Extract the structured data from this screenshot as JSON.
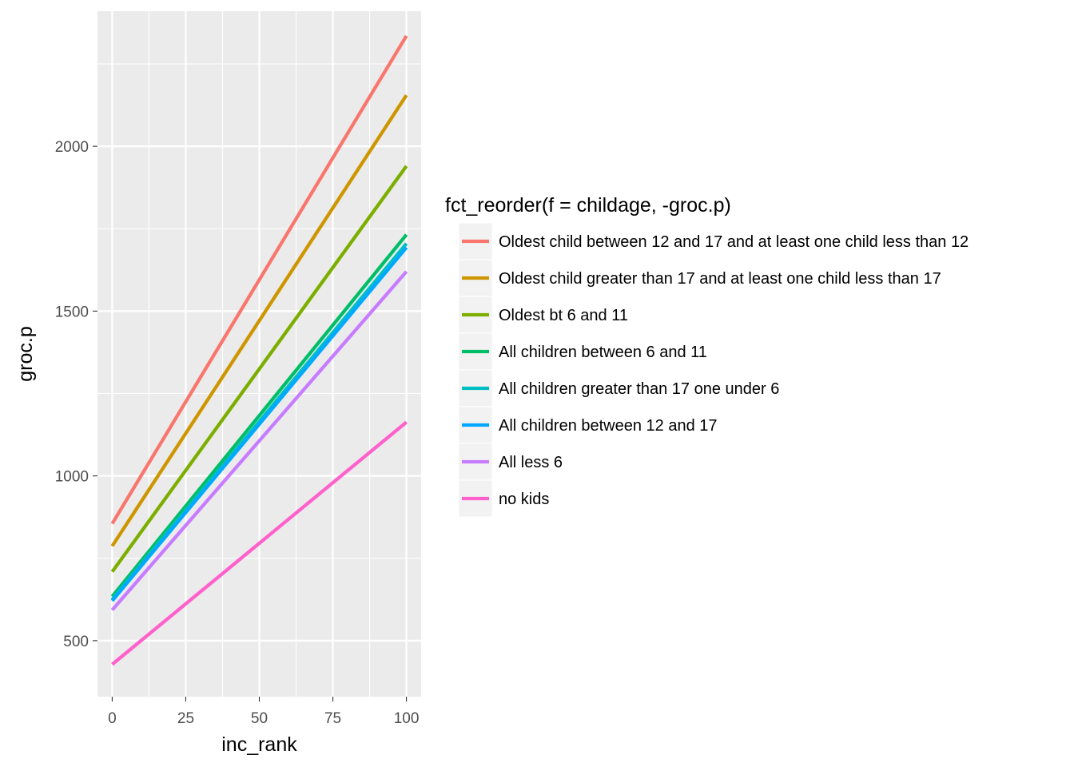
{
  "chart_data": {
    "type": "line",
    "xlabel": "inc_rank",
    "ylabel": "groc.p",
    "xlim": [
      -5,
      105
    ],
    "ylim": [
      330,
      2410
    ],
    "x_ticks": [
      0,
      25,
      50,
      75,
      100
    ],
    "x_tick_labels": [
      "0",
      "25",
      "50",
      "75",
      "100"
    ],
    "y_ticks": [
      500,
      1000,
      1500,
      2000
    ],
    "y_tick_labels": [
      "500",
      "1000",
      "1500",
      "2000"
    ],
    "grid": true,
    "panel_background": "#ebebeb",
    "legend": {
      "title": "fct_reorder(f = childage, -groc.p)",
      "position": "right"
    },
    "series": [
      {
        "name": "Oldest child between 12 and 17 and at least one child less than 12",
        "color": "#F8766D",
        "x": [
          0,
          100
        ],
        "y": [
          855,
          2335
        ]
      },
      {
        "name": "Oldest child greater than 17 and at least one child less than 17",
        "color": "#CD9600",
        "x": [
          0,
          100
        ],
        "y": [
          787,
          2155
        ]
      },
      {
        "name": "Oldest bt 6 and 11",
        "color": "#7CAE00",
        "x": [
          0,
          100
        ],
        "y": [
          709,
          1940
        ]
      },
      {
        "name": "All children between 6 and 11",
        "color": "#00BE67",
        "x": [
          0,
          100
        ],
        "y": [
          634,
          1732
        ]
      },
      {
        "name": "All children greater than 17 one under 6",
        "color": "#00BFC4",
        "x": [
          0,
          100
        ],
        "y": [
          625,
          1705
        ]
      },
      {
        "name": "All children between 12 and 17",
        "color": "#00A9FF",
        "x": [
          0,
          100
        ],
        "y": [
          621,
          1693
        ]
      },
      {
        "name": "All less 6",
        "color": "#C77CFF",
        "x": [
          0,
          100
        ],
        "y": [
          593,
          1620
        ]
      },
      {
        "name": "no kids",
        "color": "#FF61CC",
        "x": [
          0,
          100
        ],
        "y": [
          428,
          1163
        ]
      }
    ]
  }
}
